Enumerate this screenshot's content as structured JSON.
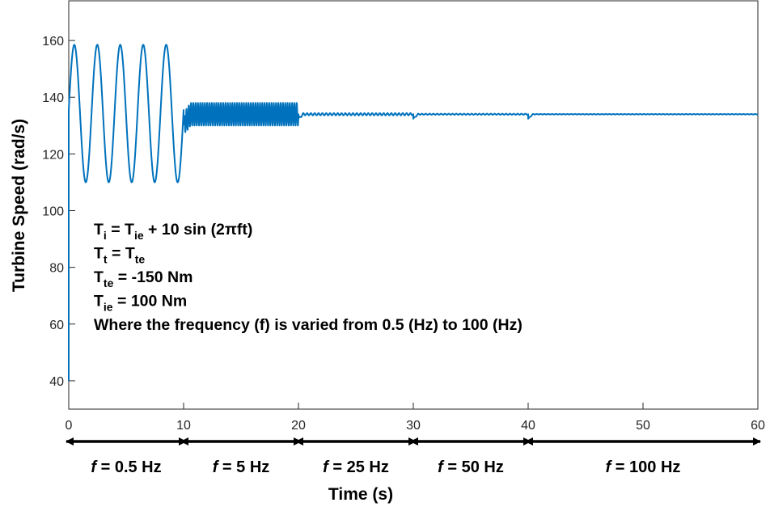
{
  "chart_data": {
    "type": "line",
    "ylabel": "Turbine Speed (rad/s)",
    "xlabel": "Time (s)",
    "xlim": [
      0,
      60
    ],
    "ylim": [
      30,
      174
    ],
    "xticks": [
      0,
      10,
      20,
      30,
      40,
      50,
      60
    ],
    "yticks": [
      40,
      60,
      80,
      100,
      120,
      140,
      160
    ],
    "grid": false,
    "line_color": "#0072BD",
    "series": [
      {
        "segments": [
          {
            "t_start": 0,
            "t_end": 10,
            "frequency_hz": 0.5,
            "mean": 134,
            "min": 110,
            "max": 158.5
          },
          {
            "t_start": 10,
            "t_end": 20,
            "frequency_hz": 5,
            "mean": 134,
            "min": 130,
            "max": 138
          },
          {
            "t_start": 20,
            "t_end": 30,
            "frequency_hz": 25,
            "mean": 134,
            "min": 133.6,
            "max": 134.4
          },
          {
            "t_start": 30,
            "t_end": 40,
            "frequency_hz": 50,
            "mean": 134,
            "min": 133.8,
            "max": 134.2
          },
          {
            "t_start": 40,
            "t_end": 60,
            "frequency_hz": 100,
            "mean": 134,
            "min": 133.9,
            "max": 134.1
          }
        ],
        "initial_value": 40
      }
    ],
    "annotations": [
      {
        "main": "T",
        "sub": "i",
        "rest": " = T",
        "sub2": "ie",
        "rest2": " + 10 sin (2πft)"
      },
      {
        "main": "T",
        "sub": "t",
        "rest": " = T",
        "sub2": "te",
        "rest2": ""
      },
      {
        "main": "T",
        "sub": "te",
        "rest": " = -150 Nm",
        "sub2": "",
        "rest2": ""
      },
      {
        "main": "T",
        "sub": "ie",
        "rest": " = 100 Nm",
        "sub2": "",
        "rest2": ""
      },
      {
        "main": "Where the frequency (f) is varied from 0.5 (Hz) to 100 (Hz)",
        "sub": "",
        "rest": "",
        "sub2": "",
        "rest2": ""
      }
    ],
    "bands": [
      {
        "from": 0,
        "to": 10,
        "f": "f",
        "label": " = 0.5 Hz"
      },
      {
        "from": 10,
        "to": 20,
        "f": "f",
        "label": " = 5 Hz"
      },
      {
        "from": 20,
        "to": 30,
        "f": "f",
        "label": " = 25 Hz"
      },
      {
        "from": 30,
        "to": 40,
        "f": "f",
        "label": " = 50 Hz"
      },
      {
        "from": 40,
        "to": 60,
        "f": "f",
        "label": " = 100 Hz"
      }
    ]
  }
}
